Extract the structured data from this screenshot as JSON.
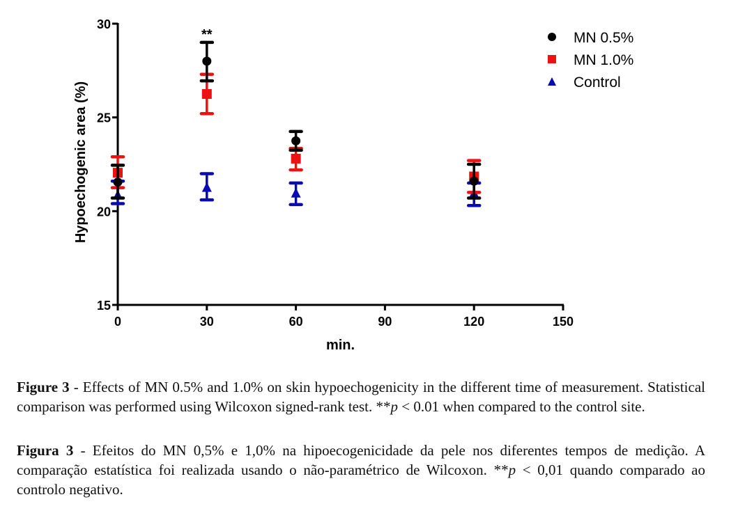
{
  "chart_data": {
    "type": "scatter",
    "title": "",
    "xlabel": "min.",
    "ylabel": "Hypoechogenic area (%)",
    "xlim": [
      0,
      150
    ],
    "ylim": [
      15,
      30
    ],
    "x_ticks": [
      0,
      30,
      60,
      90,
      120,
      150
    ],
    "y_ticks": [
      15,
      20,
      25,
      30
    ],
    "grid": false,
    "legend_position": "top-right",
    "error_bars": true,
    "series": [
      {
        "name": "MN 0.5%",
        "color": "#000000",
        "marker": "circle",
        "points": [
          {
            "x": 0,
            "y": 21.55,
            "err_low": 20.7,
            "err_high": 22.45
          },
          {
            "x": 30,
            "y": 28.0,
            "err_low": 26.95,
            "err_high": 29.0
          },
          {
            "x": 60,
            "y": 23.75,
            "err_low": 23.25,
            "err_high": 24.25
          },
          {
            "x": 120,
            "y": 21.6,
            "err_low": 20.7,
            "err_high": 22.5
          }
        ]
      },
      {
        "name": "MN 1.0%",
        "color": "#ee1111",
        "marker": "square",
        "points": [
          {
            "x": 0,
            "y": 22.05,
            "err_low": 21.25,
            "err_high": 22.9
          },
          {
            "x": 30,
            "y": 26.25,
            "err_low": 25.2,
            "err_high": 27.3
          },
          {
            "x": 60,
            "y": 22.8,
            "err_low": 22.2,
            "err_high": 23.35
          },
          {
            "x": 120,
            "y": 21.85,
            "err_low": 21.0,
            "err_high": 22.7
          }
        ]
      },
      {
        "name": "Control",
        "color": "#0a0ab4",
        "marker": "triangle",
        "points": [
          {
            "x": 0,
            "y": 20.85,
            "err_low": 20.4,
            "err_high": 21.6
          },
          {
            "x": 30,
            "y": 21.25,
            "err_low": 20.6,
            "err_high": 22.0
          },
          {
            "x": 60,
            "y": 20.95,
            "err_low": 20.35,
            "err_high": 21.5
          },
          {
            "x": 120,
            "y": 20.95,
            "err_low": 20.3,
            "err_high": 21.5
          }
        ]
      }
    ],
    "annotations": [
      {
        "text": "**",
        "x": 30,
        "y": 29.0
      }
    ]
  },
  "caption_en": {
    "label": "Figure 3",
    "sep": " - ",
    "text_before": "Effects of MN 0.5% and 1.0% on skin hypoechogenicity in the different time of measurement. Statistical comparison was performed using Wilcoxon signed-rank test. **",
    "p_symbol": "p",
    "text_after": " < 0.01 when compared to the control site."
  },
  "caption_pt": {
    "label": "Figura 3",
    "sep": " - ",
    "text_before": "Efeitos do MN 0,5% e 1,0% na hipoecogenicidade da pele nos diferentes tempos de medição. A comparação estatística foi realizada usando o não-paramétrico de Wilcoxon. **",
    "p_symbol": "p",
    "text_after": " < 0,01 quando comparado ao controlo negativo."
  }
}
